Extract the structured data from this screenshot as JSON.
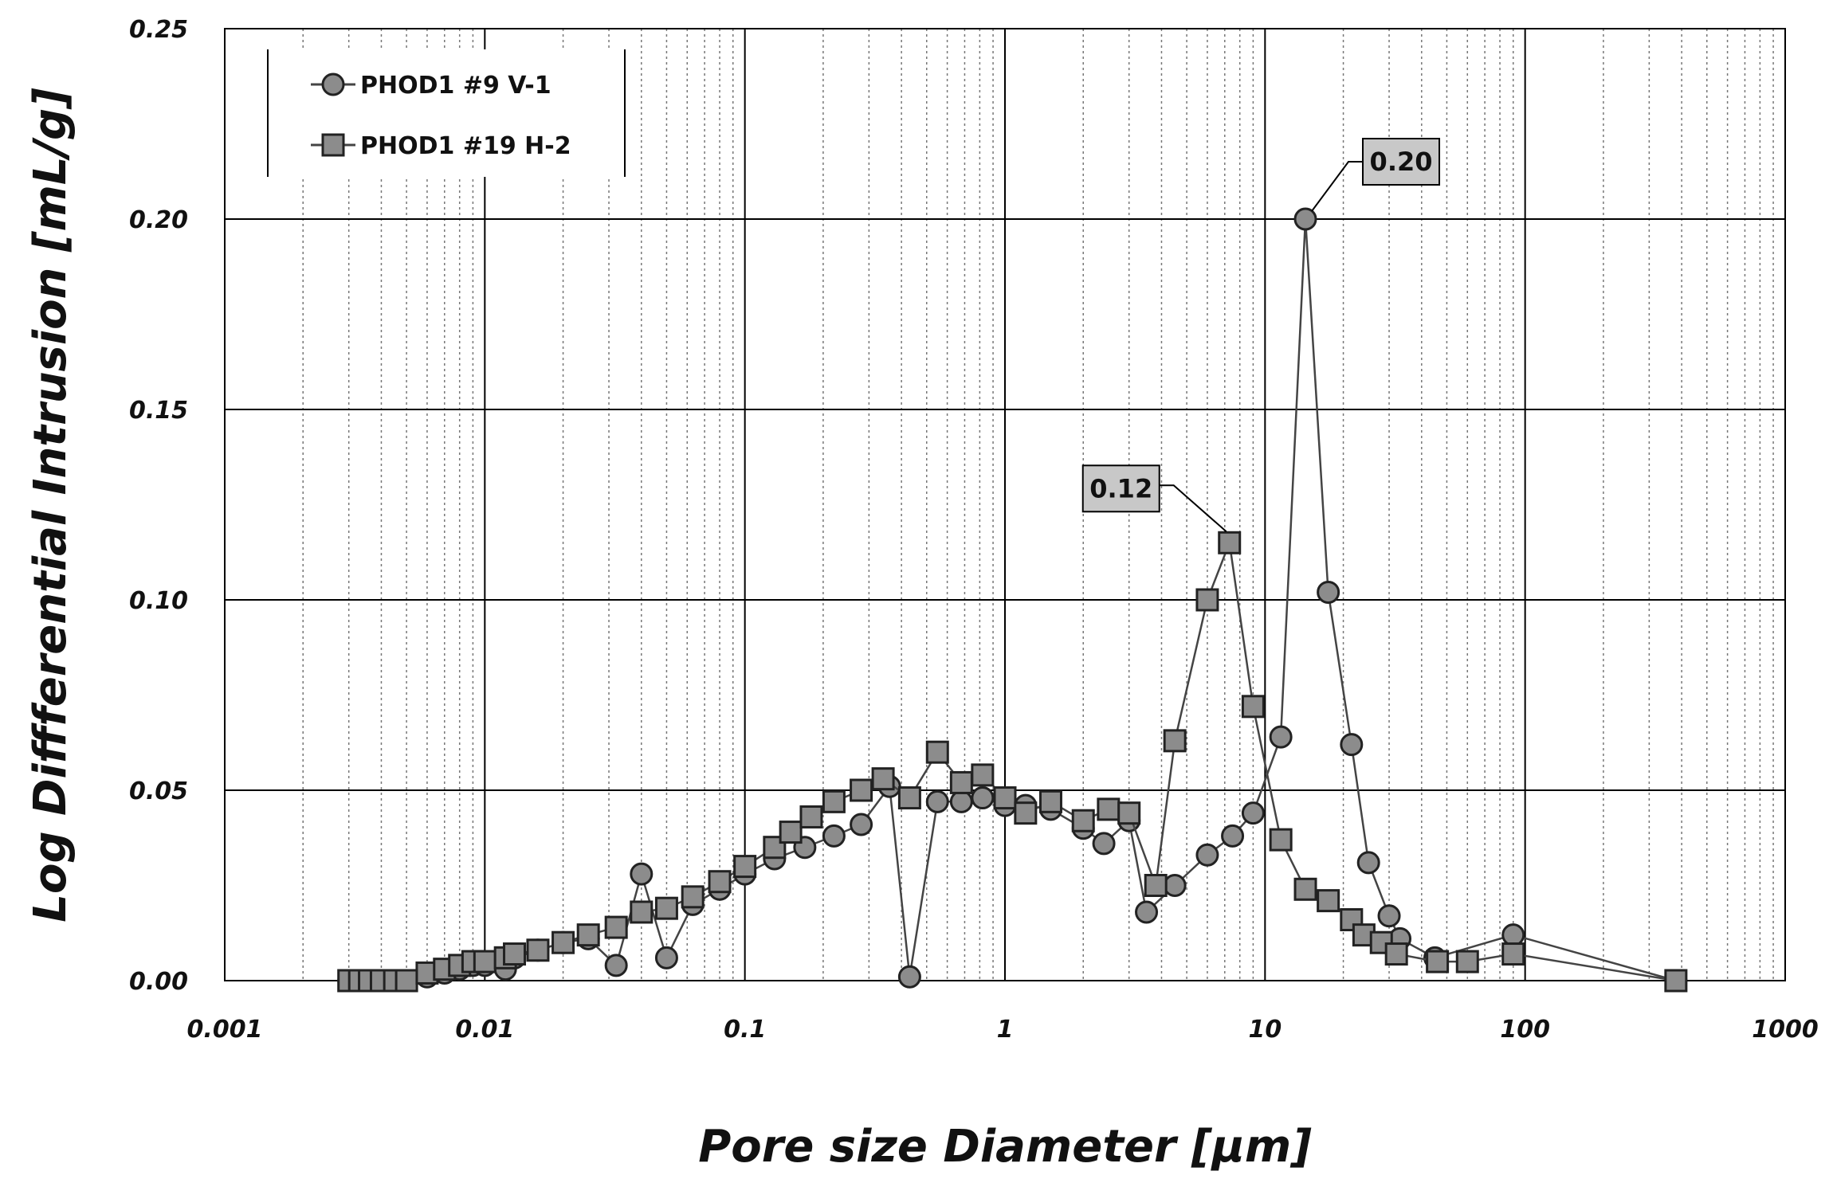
{
  "chart_data": {
    "type": "line",
    "xlabel": "Pore size Diameter [μm]",
    "ylabel": "Log Diffferential Intrusion [mL/g]",
    "xscale": "log",
    "xlim": [
      0.001,
      1000
    ],
    "ylim": [
      0,
      0.25
    ],
    "x_ticks": [
      0.001,
      0.01,
      0.1,
      1,
      10,
      100,
      1000
    ],
    "x_tick_labels": [
      "0.001",
      "0.01",
      "0.1",
      "1",
      "10",
      "100",
      "1000"
    ],
    "y_ticks": [
      0,
      0.05,
      0.1,
      0.15,
      0.2,
      0.25
    ],
    "y_tick_labels": [
      "0.00",
      "0.05",
      "0.10",
      "0.15",
      "0.20",
      "0.25"
    ],
    "grid": "major and minor (log)",
    "legend_position": "top-left",
    "series": [
      {
        "name": "PHOD1 #9 V-1",
        "marker": "circle",
        "x": [
          0.003,
          0.0033,
          0.0036,
          0.004,
          0.0045,
          0.005,
          0.006,
          0.007,
          0.008,
          0.009,
          0.01,
          0.012,
          0.013,
          0.016,
          0.02,
          0.025,
          0.032,
          0.04,
          0.05,
          0.063,
          0.08,
          0.1,
          0.13,
          0.17,
          0.22,
          0.28,
          0.36,
          0.43,
          0.55,
          0.68,
          0.82,
          1.0,
          1.2,
          1.5,
          2.0,
          2.4,
          3.0,
          3.5,
          4.5,
          6.0,
          7.5,
          9.0,
          11.5,
          14.3,
          17.5,
          21.5,
          25,
          30,
          33,
          45,
          90,
          380
        ],
        "y": [
          0,
          0,
          0,
          0,
          0,
          0,
          0.001,
          0.002,
          0.003,
          0.004,
          0.004,
          0.003,
          0.006,
          0.008,
          0.01,
          0.011,
          0.004,
          0.028,
          0.006,
          0.02,
          0.024,
          0.028,
          0.032,
          0.035,
          0.038,
          0.041,
          0.051,
          0.001,
          0.047,
          0.047,
          0.048,
          0.046,
          0.046,
          0.045,
          0.04,
          0.036,
          0.042,
          0.018,
          0.025,
          0.033,
          0.038,
          0.044,
          0.064,
          0.2,
          0.102,
          0.062,
          0.031,
          0.017,
          0.011,
          0.006,
          0.012,
          0
        ]
      },
      {
        "name": "PHOD1 #19 H-2",
        "marker": "square",
        "x": [
          0.003,
          0.0033,
          0.0036,
          0.004,
          0.0045,
          0.005,
          0.006,
          0.007,
          0.008,
          0.009,
          0.01,
          0.012,
          0.013,
          0.016,
          0.02,
          0.025,
          0.032,
          0.04,
          0.05,
          0.063,
          0.08,
          0.1,
          0.13,
          0.15,
          0.18,
          0.22,
          0.28,
          0.34,
          0.43,
          0.55,
          0.68,
          0.82,
          1.0,
          1.2,
          1.5,
          2.0,
          2.5,
          3.0,
          3.8,
          4.5,
          6.0,
          7.3,
          9.0,
          11.5,
          14.3,
          17.5,
          21.5,
          24,
          28,
          32,
          46,
          60,
          90,
          380
        ],
        "y": [
          0,
          0,
          0,
          0,
          0,
          0,
          0.002,
          0.003,
          0.004,
          0.005,
          0.005,
          0.006,
          0.007,
          0.008,
          0.01,
          0.012,
          0.014,
          0.018,
          0.019,
          0.022,
          0.026,
          0.03,
          0.035,
          0.039,
          0.043,
          0.047,
          0.05,
          0.053,
          0.048,
          0.06,
          0.052,
          0.054,
          0.048,
          0.044,
          0.047,
          0.042,
          0.045,
          0.044,
          0.025,
          0.063,
          0.1,
          0.115,
          0.072,
          0.037,
          0.024,
          0.021,
          0.016,
          0.012,
          0.01,
          0.007,
          0.005,
          0.005,
          0.007,
          0
        ]
      }
    ],
    "annotations": [
      {
        "text": "0.20",
        "series": "PHOD1 #9 V-1",
        "x": 14.3,
        "y": 0.2
      },
      {
        "text": "0.12",
        "series": "PHOD1 #19 H-2",
        "x": 7.3,
        "y": 0.115
      }
    ]
  },
  "colors": {
    "marker_fill": "#8c8c8c",
    "marker_stroke": "#222222",
    "line": "#444444",
    "grid_major": "#000000",
    "grid_minor": "#777777",
    "callout_fill": "#c8c8c8"
  }
}
